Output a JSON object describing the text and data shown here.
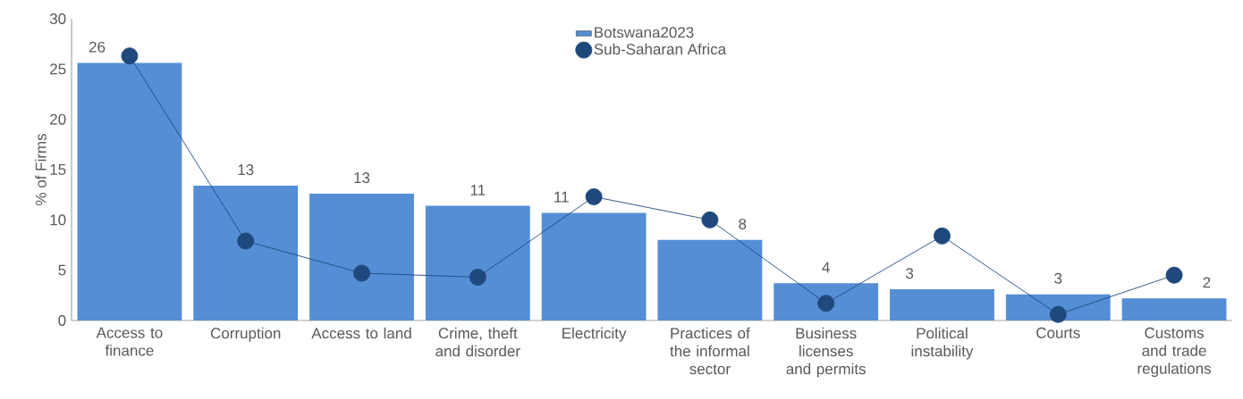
{
  "chart_data": {
    "type": "bar",
    "ylabel": "% of Firms",
    "categories": [
      "Access to finance",
      "Corruption",
      "Access to land",
      "Crime, theft and disorder",
      "Electricity",
      "Practices of the informal sector",
      "Business licenses and permits",
      "Political instability",
      "Courts",
      "Customs and trade regulations"
    ],
    "series": [
      {
        "name": "Botswana2023",
        "type": "bar",
        "color": "#558ed5",
        "values": [
          25.6,
          13.4,
          12.6,
          11.4,
          10.7,
          8.0,
          3.7,
          3.1,
          2.6,
          2.2
        ],
        "value_labels": [
          "26",
          "13",
          "13",
          "11",
          "11",
          "8",
          "4",
          "3",
          "3",
          "2"
        ]
      },
      {
        "name": "Sub-Saharan Africa",
        "type": "line",
        "color": "#1f497d",
        "values": [
          26.3,
          7.9,
          4.7,
          4.3,
          12.3,
          10.0,
          1.7,
          8.4,
          0.6,
          4.5
        ]
      }
    ],
    "ylim": [
      0,
      30
    ],
    "yticks": [
      0,
      5,
      10,
      15,
      20,
      25,
      30
    ],
    "legend": "top",
    "marker": "circle",
    "grid": false
  }
}
